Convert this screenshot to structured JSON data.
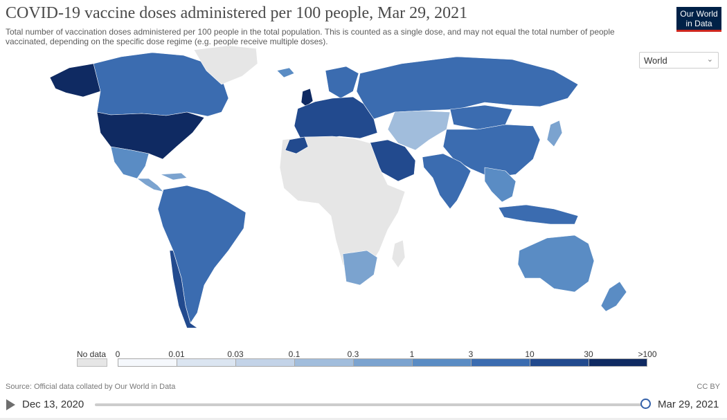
{
  "header": {
    "title": "COVID-19 vaccine doses administered per 100 people, Mar 29, 2021",
    "subtitle": "Total number of vaccination doses administered per 100 people in the total population. This is counted as a single dose, and may not equal the total number of people vaccinated, depending on the specific dose regime (e.g. people receive multiple doses).",
    "logo_line1": "Our World",
    "logo_line2": "in Data"
  },
  "region_select": {
    "value": "World"
  },
  "legend": {
    "no_data_label": "No data",
    "ticks": [
      "0",
      "0.01",
      "0.03",
      "0.1",
      "0.3",
      "1",
      "3",
      "10",
      "30",
      ">100"
    ],
    "colors": [
      "#f5f8fc",
      "#dbe5f1",
      "#c3d3e8",
      "#a1bddc",
      "#7ba3cf",
      "#5a8cc4",
      "#3b6cb0",
      "#224a8e",
      "#0f2a62"
    ],
    "no_data_color": "#e6e6e6"
  },
  "footer": {
    "source": "Source: Official data collated by Our World in Data",
    "license": "CC BY"
  },
  "timeline": {
    "start_date": "Dec 13, 2020",
    "end_date": "Mar 29, 2021",
    "position": 1.0
  },
  "map_colors": {
    "usa": "#0f2a62",
    "uk": "#0f2a62",
    "canada": "#3b6cb0",
    "alaska": "#0f2a62",
    "greenland": "#e6e6e6",
    "mexico": "#5a8cc4",
    "central_america": "#7ba3cf",
    "south_america": "#3b6cb0",
    "chile": "#224a8e",
    "europe": "#224a8e",
    "scandinavia": "#3b6cb0",
    "russia": "#3b6cb0",
    "kazakhstan": "#a1bddc",
    "china": "#3b6cb0",
    "mongolia": "#3b6cb0",
    "india": "#3b6cb0",
    "middle_east": "#224a8e",
    "africa": "#e6e6e6",
    "southern_africa": "#7ba3cf",
    "southeast_asia": "#5a8cc4",
    "indonesia": "#3b6cb0",
    "australia": "#5a8cc4",
    "new_zealand": "#5a8cc4",
    "japan": "#7ba3cf",
    "iceland": "#5a8cc4"
  }
}
